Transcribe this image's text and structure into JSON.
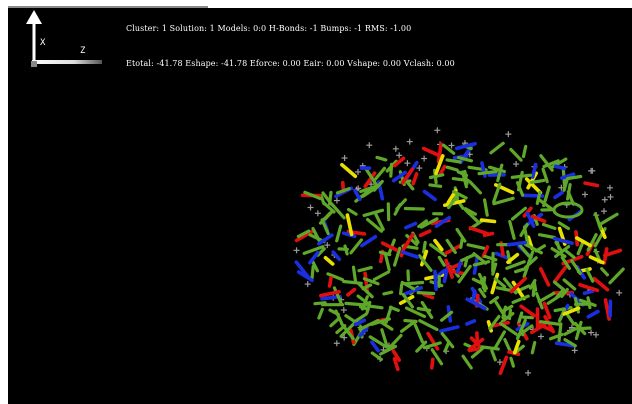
{
  "axes": {
    "x_label": "X",
    "z_label": "Z"
  },
  "status": {
    "line1": "Cluster: 1 Solution: 1 Models: 0:0 H-Bonds: -1 Bumps: -1 RMS: -1.00",
    "line2": "Etotal: -41.78 Eshape: -41.78 Eforce: 0.00 Eair: 0.00 Vshape: 0.00 Vclash: 0.00"
  },
  "colors": {
    "background": "#000000",
    "carbon": "#5fa82a",
    "nitrogen": "#1a2fe0",
    "oxygen": "#e01010",
    "sulfur": "#e8e000",
    "water": "#9a9a9a"
  }
}
